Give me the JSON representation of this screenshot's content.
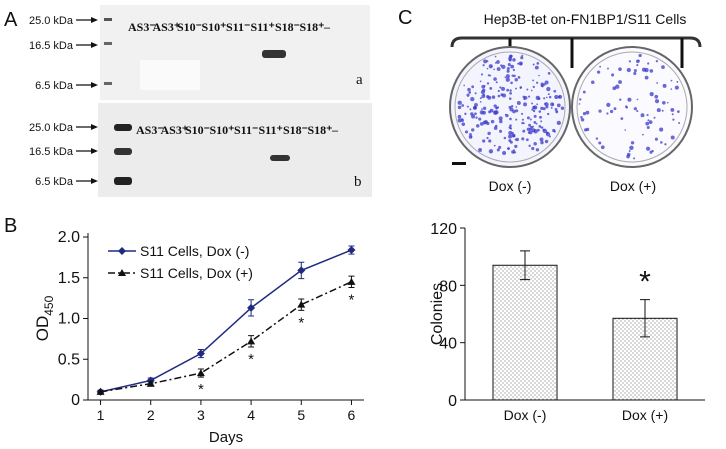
{
  "panels": {
    "a": "A",
    "b": "B",
    "c": "C"
  },
  "blots": [
    {
      "markers": [
        "25.0 kDa",
        "16.5 kDa",
        "6.5 kDa"
      ],
      "lanes": [
        "AS3⁻",
        "AS3⁺",
        "S10⁻",
        "S10⁺",
        "S11⁻",
        "S11⁺",
        "S18⁻",
        "S18⁺",
        "–"
      ],
      "tag": "a"
    },
    {
      "markers": [
        "25.0 kDa",
        "16.5 kDa",
        "6.5 kDa"
      ],
      "lanes": [
        "AS3⁻",
        "AS3⁺",
        "S10⁻",
        "S10⁺",
        "S11⁻",
        "S11⁺",
        "S18⁻",
        "S18⁺",
        "–"
      ],
      "tag": "b"
    }
  ],
  "dish_image": {
    "title": "Hep3B-tet on-FN1BP1/S11 Cells"
  },
  "chart_data": [
    {
      "type": "line",
      "xlabel": "Days",
      "ylabel": "OD",
      "ylabel_subscript": "450",
      "x": [
        1,
        2,
        3,
        4,
        5,
        6
      ],
      "xlim": [
        0.75,
        6.25
      ],
      "xticks": [
        1,
        2,
        3,
        4,
        5,
        6
      ],
      "ylim": [
        0,
        2
      ],
      "yticks": [
        0,
        0.5,
        {
          "value": 1,
          "label": "1.0"
        },
        1.5,
        {
          "value": 2,
          "label": "2.0"
        }
      ],
      "series": [
        {
          "name": "S11 Cells, Dox (-)",
          "color": "#1f2a80",
          "marker": "diamond",
          "dash": "solid",
          "values": [
            0.1,
            0.24,
            0.57,
            1.13,
            1.59,
            1.84
          ],
          "errors": [
            0.02,
            0.03,
            0.05,
            0.1,
            0.1,
            0.05
          ]
        },
        {
          "name": "S11 Cells, Dox (+)",
          "color": "#111111",
          "marker": "triangle",
          "dash": "dashdot",
          "values": [
            0.1,
            0.2,
            0.33,
            0.72,
            1.17,
            1.45
          ],
          "errors": [
            0.02,
            0.03,
            0.05,
            0.07,
            0.07,
            0.07
          ]
        }
      ],
      "significance_label": "*",
      "significance_x": [
        3,
        4,
        5,
        6
      ]
    },
    {
      "type": "bar",
      "ylabel": "Colonies",
      "categories": [
        "Dox (-)",
        "Dox (+)"
      ],
      "values": [
        94,
        57
      ],
      "errors": [
        10,
        13
      ],
      "ylim": [
        0,
        120
      ],
      "yticks": [
        0,
        40,
        80,
        120
      ],
      "significance_label": "*",
      "significant": [
        false,
        true
      ]
    }
  ]
}
